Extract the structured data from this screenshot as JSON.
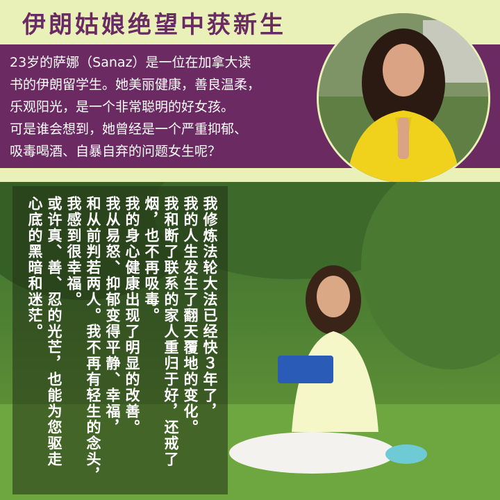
{
  "header": {
    "title": "伊朗姑娘绝望中获新生"
  },
  "intro": {
    "lines": [
      "23岁的萨娜（Sanaz）是一位在加拿大读",
      "书的伊朗留学生。她美丽健康，善良温柔，",
      "乐观阳光，是一个非常聪明的好女孩。",
      "可是谁会想到，她曾经是一个严重抑郁、",
      "吸毒喝酒、自暴自弃的问题女生呢？"
    ]
  },
  "quote": {
    "paragraphs": [
      "我修炼法轮大法已经快３年了，",
      "我的人生发生了翻天覆地的变化。",
      "我和断了联系的家人重归于好，还戒了",
      "烟，也不再吸毒。",
      "我的身心健康出现了明显的改善。",
      "我从易怒、抑郁变得平静、幸福，",
      "和从前判若两人。我不再有轻生的念头，",
      "我感到很幸福。",
      "或许真、善、忍的光芒，也能为您驱走",
      "心底的黑暗和迷茫。"
    ]
  }
}
